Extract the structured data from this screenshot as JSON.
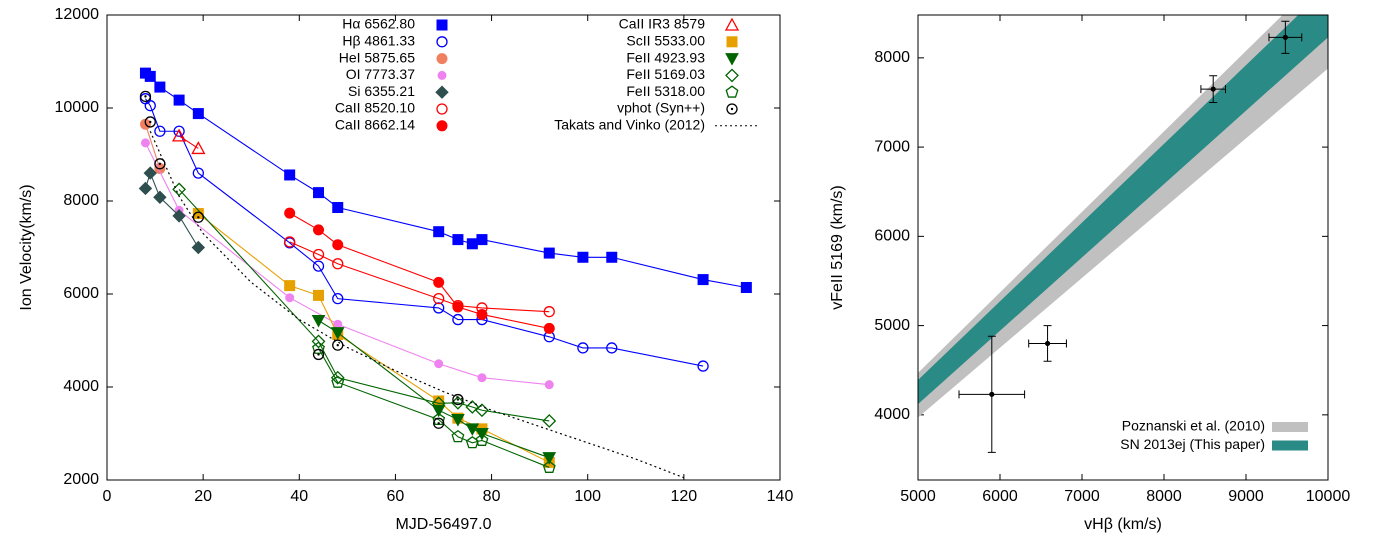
{
  "chart_data": [
    {
      "type": "line",
      "xlabel": "MJD-56497.0",
      "ylabel": "Ion Velocity(km/s)",
      "xlim": [
        0,
        140
      ],
      "ylim": [
        2000,
        12000
      ],
      "xticks": [
        0,
        20,
        40,
        60,
        80,
        100,
        120,
        140
      ],
      "yticks": [
        2000,
        4000,
        6000,
        8000,
        10000,
        12000
      ],
      "series": [
        {
          "name": "Hα 6562.80",
          "color": "#0000ff",
          "marker": "square",
          "line": "solid",
          "x": [
            8,
            9,
            11,
            15,
            19,
            38,
            44,
            48,
            69,
            73,
            76,
            78,
            92,
            99,
            105,
            124,
            133
          ],
          "values": [
            10750,
            10680,
            10450,
            10170,
            9880,
            8560,
            8180,
            7860,
            7340,
            7170,
            7080,
            7170,
            6880,
            6790,
            6790,
            6310,
            6140
          ]
        },
        {
          "name": "Hβ 4861.33",
          "color": "#0000ff",
          "marker": "circle-open",
          "line": "solid",
          "x": [
            8,
            9,
            11,
            15,
            19,
            38,
            44,
            48,
            69,
            73,
            78,
            92,
            99,
            105,
            124
          ],
          "values": [
            10200,
            10050,
            9500,
            9500,
            8600,
            7100,
            6600,
            5900,
            5700,
            5450,
            5450,
            5080,
            4840,
            4840,
            4450
          ]
        },
        {
          "name": "HeI 5875.65",
          "color": "#f08060",
          "marker": "circle",
          "line": "solid",
          "x": [
            8,
            11
          ],
          "values": [
            9650,
            8700
          ]
        },
        {
          "name": "OI 7773.37",
          "color": "#ee82ee",
          "marker": "circle-small",
          "line": "solid",
          "x": [
            8,
            15,
            38,
            48,
            69,
            78,
            92
          ],
          "values": [
            9250,
            7800,
            5920,
            5350,
            4500,
            4200,
            4050
          ]
        },
        {
          "name": "Si 6355.21",
          "color": "#2f4f4f",
          "marker": "diamond",
          "line": "solid",
          "x": [
            8,
            9,
            11,
            15,
            19
          ],
          "values": [
            8270,
            8600,
            8080,
            7680,
            7000
          ]
        },
        {
          "name": "CaII 8520.10",
          "color": "#ff0000",
          "marker": "circle-open",
          "line": "solid",
          "x": [
            38,
            44,
            48,
            69,
            73,
            78,
            92
          ],
          "values": [
            7120,
            6850,
            6650,
            5900,
            5750,
            5700,
            5620
          ]
        },
        {
          "name": "CaII 8662.14",
          "color": "#ff0000",
          "marker": "circle",
          "line": "solid",
          "x": [
            38,
            44,
            48,
            69,
            73,
            78,
            92
          ],
          "values": [
            7740,
            7380,
            7060,
            6250,
            5720,
            5560,
            5260
          ]
        },
        {
          "name": "CaII IR3 8579",
          "color": "#ff0000",
          "marker": "triangle-open",
          "line": "solid",
          "x": [
            15,
            19
          ],
          "values": [
            9400,
            9130
          ]
        },
        {
          "name": "ScII 5533.00",
          "color": "#e6a000",
          "marker": "square",
          "line": "solid",
          "x": [
            19,
            38,
            44,
            48,
            69,
            73,
            78,
            92
          ],
          "values": [
            7730,
            6180,
            5970,
            5130,
            3700,
            3330,
            3100,
            2380
          ]
        },
        {
          "name": "FeII 4923.93",
          "color": "#006400",
          "marker": "triangle-down",
          "line": "solid",
          "x": [
            44,
            48,
            69,
            73,
            76,
            78,
            92
          ],
          "values": [
            5430,
            5170,
            3500,
            3300,
            3100,
            3000,
            2480
          ]
        },
        {
          "name": "FeII 5169.03",
          "color": "#006400",
          "marker": "diamond-open",
          "line": "solid",
          "x": [
            15,
            44,
            48,
            69,
            73,
            76,
            78,
            92
          ],
          "values": [
            8250,
            4980,
            4200,
            3650,
            3660,
            3570,
            3500,
            3270
          ]
        },
        {
          "name": "FeII 5318.00",
          "color": "#006400",
          "marker": "pentagon-open",
          "line": "solid",
          "x": [
            44,
            48,
            69,
            73,
            76,
            78,
            92
          ],
          "values": [
            4830,
            4100,
            3300,
            2930,
            2800,
            2850,
            2270
          ]
        },
        {
          "name": "vphot (Syn++)",
          "color": "#000000",
          "marker": "circle-open-dot",
          "line": "none",
          "x": [
            8,
            9,
            11,
            19,
            44,
            48,
            69,
            73
          ],
          "values": [
            10250,
            9700,
            8800,
            7650,
            4700,
            4900,
            3220,
            3730
          ]
        },
        {
          "name": "Takats and Vinko (2012)",
          "color": "#000000",
          "marker": "none",
          "line": "dotted",
          "x": [
            9,
            15,
            20,
            30,
            40,
            50,
            60,
            70,
            80,
            90,
            100,
            110,
            120
          ],
          "values": [
            9500,
            8100,
            7300,
            6250,
            5450,
            4850,
            4350,
            3900,
            3500,
            3150,
            2800,
            2450,
            2050
          ]
        }
      ]
    },
    {
      "type": "scatter",
      "xlabel": "vHβ (km/s)",
      "ylabel": "vFeII 5169 (km/s)",
      "xlim": [
        5000,
        10000
      ],
      "ylim": [
        3270,
        8480
      ],
      "xticks": [
        5000,
        6000,
        7000,
        8000,
        9000,
        10000
      ],
      "yticks": [
        4000,
        5000,
        6000,
        7000,
        8000
      ],
      "bands": [
        {
          "name": "Poznanski et al. (2010)",
          "color": "#c0c0c0",
          "x": [
            5000,
            10000
          ],
          "lower": [
            3970,
            7880
          ],
          "upper": [
            4470,
            8980
          ]
        },
        {
          "name": "SN 2013ej (This paper)",
          "color": "#2a8a85",
          "x": [
            5000,
            10000
          ],
          "lower": [
            4120,
            8230
          ],
          "upper": [
            4390,
            8800
          ]
        }
      ],
      "points": {
        "color": "#000000",
        "x": [
          5900,
          6580,
          8600,
          9480
        ],
        "y": [
          4230,
          4800,
          7650,
          8230
        ],
        "xerr": [
          400,
          230,
          150,
          200
        ],
        "yerr": [
          650,
          200,
          150,
          180
        ]
      }
    }
  ]
}
